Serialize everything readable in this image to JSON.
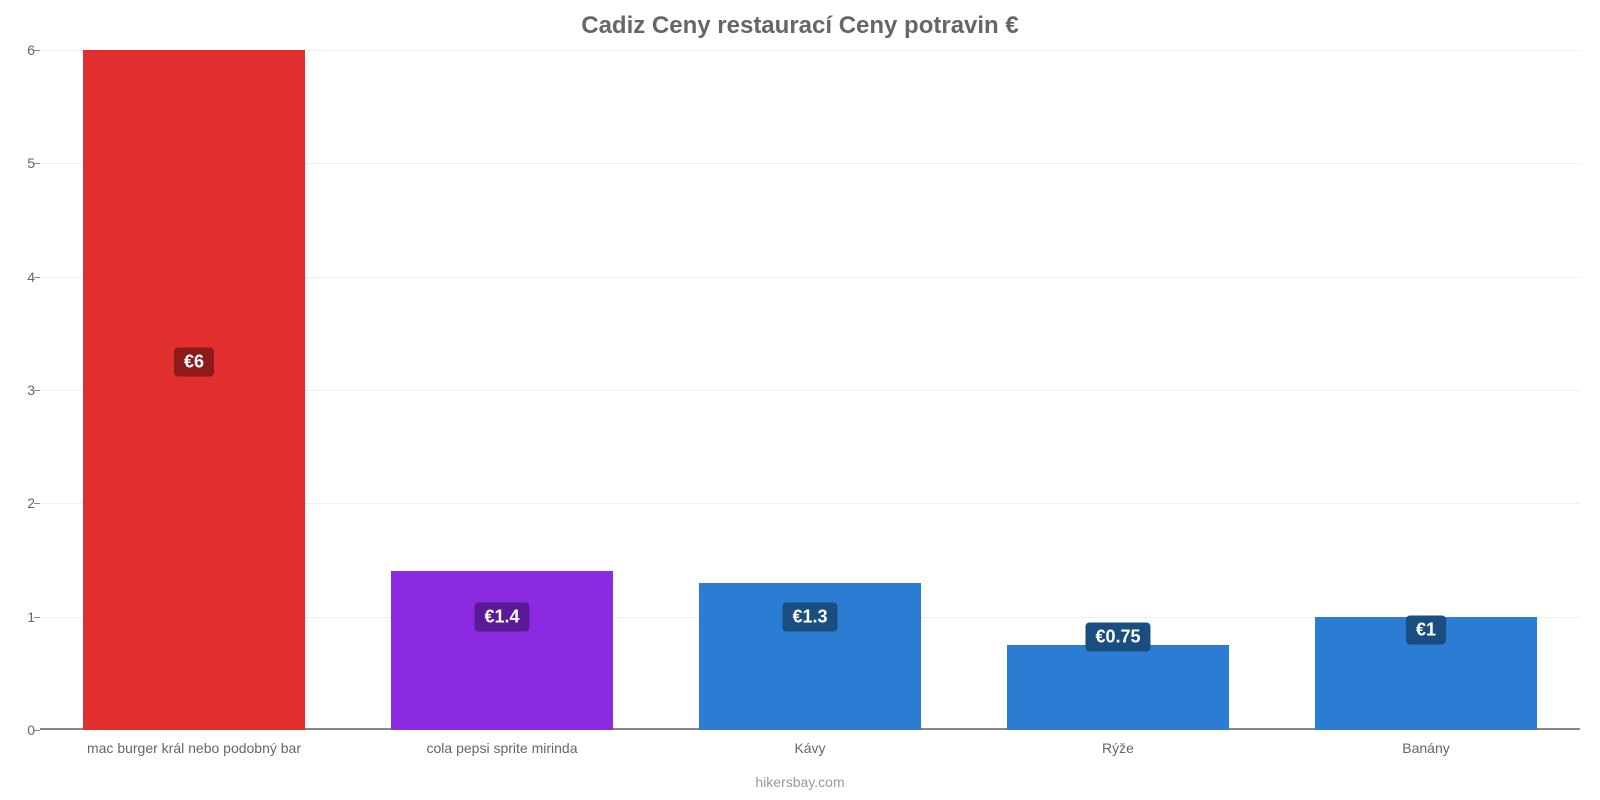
{
  "chart": {
    "type": "bar",
    "title": "Cadiz Ceny restaurací Ceny potravin €",
    "title_color": "#666666",
    "title_fontsize": 24,
    "background_color": "#ffffff",
    "grid_color": "#f0f0f0",
    "axis_color": "#888888",
    "tick_label_color": "#666666",
    "tick_fontsize": 14,
    "footer": "hikersbay.com",
    "footer_color": "#999999",
    "ylim": [
      0,
      6
    ],
    "yticks": [
      0,
      1,
      2,
      3,
      4,
      5,
      6
    ],
    "bar_width_ratio": 0.72,
    "categories": [
      "mac burger král nebo podobný bar",
      "cola pepsi sprite mirinda",
      "Kávy",
      "Rýže",
      "Banány"
    ],
    "values": [
      6,
      1.4,
      1.3,
      0.75,
      1
    ],
    "value_labels": [
      "€6",
      "€1.4",
      "€1.3",
      "€0.75",
      "€1"
    ],
    "bar_colors": [
      "#e12e2e",
      "#8a2be2",
      "#2b7cd3",
      "#2b7cd3",
      "#2b7cd3"
    ],
    "badge_colors": [
      "#8e1a1a",
      "#5a1a96",
      "#1a4d80",
      "#1a4d80",
      "#1a4d80"
    ],
    "badge_fontsize": 18,
    "badge_y_values": [
      3.25,
      1.0,
      1.0,
      0.82,
      0.88
    ]
  }
}
